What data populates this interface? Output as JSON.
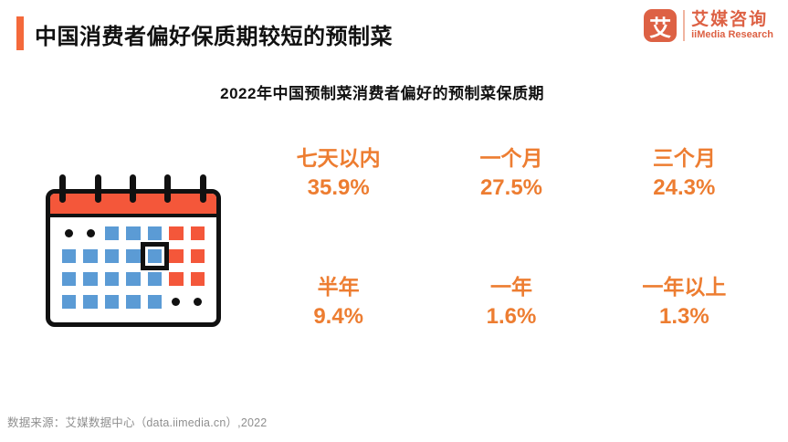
{
  "page": {
    "title": "中国消费者偏好保质期较短的预制菜",
    "subtitle": "2022年中国预制菜消费者偏好的预制菜保质期",
    "source": "数据来源：艾媒数据中心（data.iimedia.cn）,2022"
  },
  "logo": {
    "icon_char": "艾",
    "name_cn": "艾媒咨询",
    "name_en": "iiMedia Research"
  },
  "colors": {
    "accent_bar_orange": "#F4693B",
    "brand_orange": "#DD6144",
    "stat_orange": "#ED7D31",
    "calendar_red": "#F4573A",
    "calendar_blue": "#5B9BD5",
    "source_gray": "#8F8F8F"
  },
  "chart_data": {
    "type": "table",
    "title": "2022年中国预制菜消费者偏好的预制菜保质期",
    "categories": [
      "七天以内",
      "一个月",
      "三个月",
      "半年",
      "一年",
      "一年以上"
    ],
    "values": [
      35.9,
      27.5,
      24.3,
      9.4,
      1.6,
      1.3
    ],
    "unit": "%",
    "legend_position": "none",
    "grid": false
  },
  "stats": [
    {
      "label": "七天以内",
      "value": "35.9%"
    },
    {
      "label": "一个月",
      "value": "27.5%"
    },
    {
      "label": "三个月",
      "value": "24.3%"
    },
    {
      "label": "半年",
      "value": "9.4%"
    },
    {
      "label": "一年",
      "value": "1.6%"
    },
    {
      "label": "一年以上",
      "value": "1.3%"
    }
  ],
  "calendar_icon": {
    "grid": [
      [
        "dot",
        "dot",
        "blue",
        "blue",
        "blue",
        "red",
        "red"
      ],
      [
        "blue",
        "blue",
        "blue",
        "blue",
        "blue-selected",
        "red",
        "red"
      ],
      [
        "blue",
        "blue",
        "blue",
        "blue",
        "blue",
        "red",
        "red"
      ],
      [
        "blue",
        "blue",
        "blue",
        "blue",
        "blue",
        "dot",
        "dot"
      ]
    ]
  }
}
